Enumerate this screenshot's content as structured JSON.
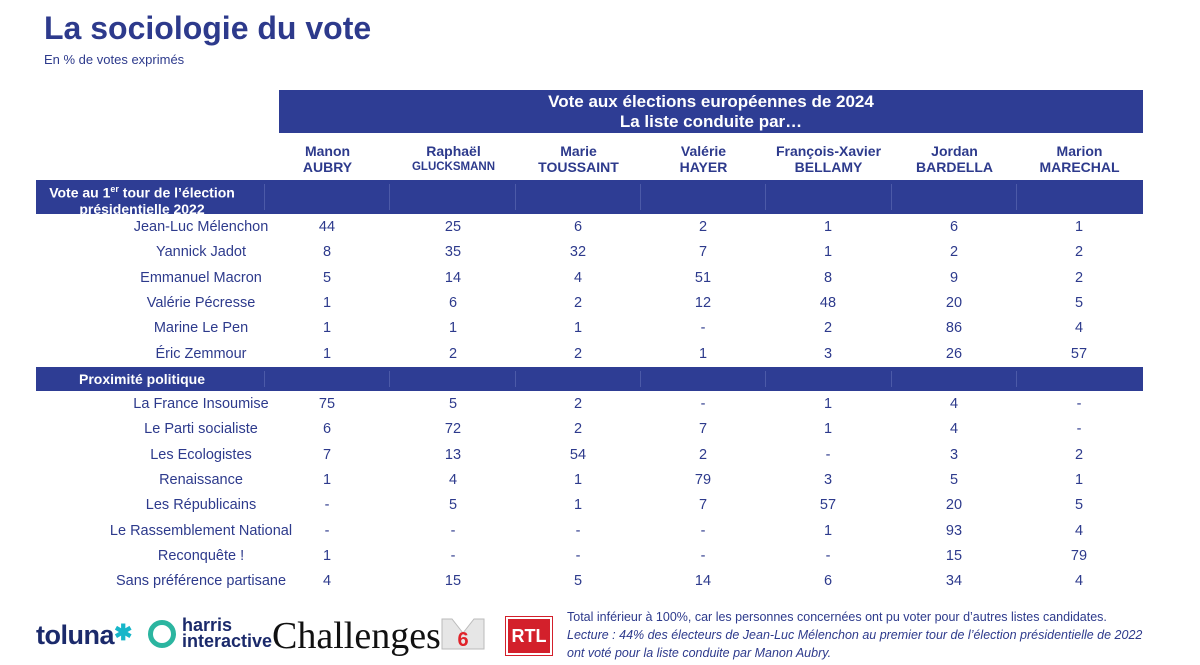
{
  "title": "La sociologie du vote",
  "subtitle": "En % de votes exprimés",
  "banner": {
    "line1": "Vote aux élections européennes de 2024",
    "line2": "La liste conduite par…"
  },
  "candidates": [
    {
      "first": "Manon",
      "last": "AUBRY"
    },
    {
      "first": "Raphaël",
      "last": "GLUCKSMANN"
    },
    {
      "first": "Marie",
      "last": "TOUSSAINT"
    },
    {
      "first": "Valérie",
      "last": "HAYER"
    },
    {
      "first": "François-Xavier",
      "last": "BELLAMY"
    },
    {
      "first": "Jordan",
      "last": "BARDELLA"
    },
    {
      "first": "Marion",
      "last": "MARECHAL"
    }
  ],
  "section1": {
    "label_pre": "Vote au 1",
    "label_sup": "er",
    "label_post": " tour de l’élection",
    "label_line2": "présidentielle 2022",
    "rows": [
      {
        "label": "Jean-Luc Mélenchon",
        "values": [
          "44",
          "25",
          "6",
          "2",
          "1",
          "6",
          "1"
        ]
      },
      {
        "label": "Yannick Jadot",
        "values": [
          "8",
          "35",
          "32",
          "7",
          "1",
          "2",
          "2"
        ]
      },
      {
        "label": "Emmanuel Macron",
        "values": [
          "5",
          "14",
          "4",
          "51",
          "8",
          "9",
          "2"
        ]
      },
      {
        "label": "Valérie Pécresse",
        "values": [
          "1",
          "6",
          "2",
          "12",
          "48",
          "20",
          "5"
        ]
      },
      {
        "label": "Marine Le Pen",
        "values": [
          "1",
          "1",
          "1",
          "-",
          "2",
          "86",
          "4"
        ]
      },
      {
        "label": "Éric Zemmour",
        "values": [
          "1",
          "2",
          "2",
          "1",
          "3",
          "26",
          "57"
        ]
      }
    ]
  },
  "section2": {
    "label": "Proximité politique",
    "rows": [
      {
        "label": "La France Insoumise",
        "values": [
          "75",
          "5",
          "2",
          "-",
          "1",
          "4",
          "-"
        ]
      },
      {
        "label": "Le Parti socialiste",
        "values": [
          "6",
          "72",
          "2",
          "7",
          "1",
          "4",
          "-"
        ]
      },
      {
        "label": "Les Ecologistes",
        "values": [
          "7",
          "13",
          "54",
          "2",
          "-",
          "3",
          "2"
        ]
      },
      {
        "label": "Renaissance",
        "values": [
          "1",
          "4",
          "1",
          "79",
          "3",
          "5",
          "1"
        ]
      },
      {
        "label": "Les Républicains",
        "values": [
          "-",
          "5",
          "1",
          "7",
          "57",
          "20",
          "5"
        ]
      },
      {
        "label": "Le Rassemblement National",
        "values": [
          "-",
          "-",
          "-",
          "-",
          "1",
          "93",
          "4"
        ]
      },
      {
        "label": "Reconquête !",
        "values": [
          "1",
          "-",
          "-",
          "-",
          "-",
          "15",
          "79"
        ]
      },
      {
        "label": "Sans préférence partisane",
        "values": [
          "4",
          "15",
          "5",
          "14",
          "6",
          "34",
          "4"
        ]
      }
    ]
  },
  "logos": {
    "toluna": "toluna",
    "harris_1": "harris",
    "harris_2": "interactive",
    "challenges": "Challenges",
    "m6": "6",
    "rtl": "RTL"
  },
  "note": {
    "line1": "Total inférieur à 100%, car les personnes concernées ont pu voter pour d’autres listes candidates.",
    "lecture": "Lecture : 44% des électeurs de Jean-Luc Mélenchon au premier tour de l’élection présidentielle de 2022 ont voté pour la liste conduite par Manon Aubry."
  },
  "colors": {
    "navy": "#2e3d94",
    "text": "#2d3a8c",
    "rtl_red": "#d3202b",
    "harris_teal": "#2bb5a0"
  }
}
